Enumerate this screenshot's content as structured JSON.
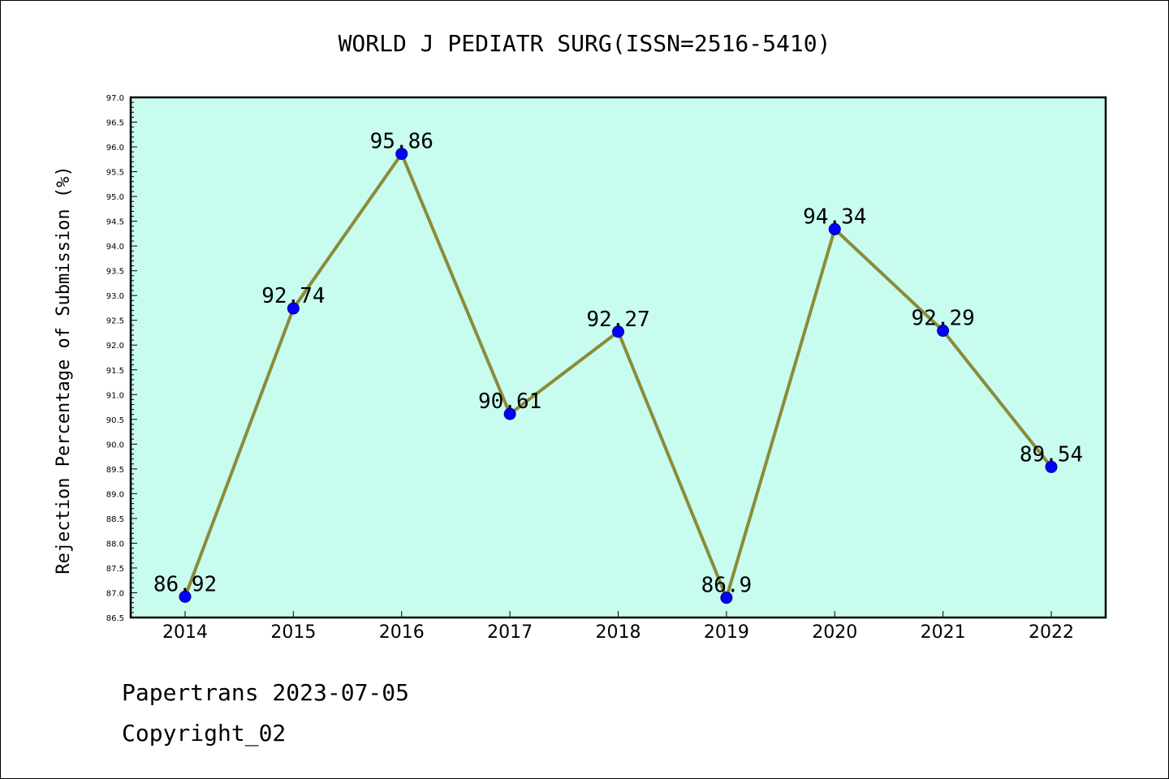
{
  "chart_data": {
    "type": "line",
    "title": "WORLD J PEDIATR SURG(ISSN=2516-5410)",
    "xlabel": "",
    "ylabel": "Rejection Percentage of Submission (%)",
    "categories": [
      "2014",
      "2015",
      "2016",
      "2017",
      "2018",
      "2019",
      "2020",
      "2021",
      "2022"
    ],
    "series": [
      {
        "values": [
          86.92,
          92.74,
          95.86,
          90.61,
          92.27,
          86.9,
          94.34,
          92.29,
          89.54
        ],
        "data_labels": [
          "86.92",
          "92.74",
          "95.86",
          "90.61",
          "92.27",
          "86.9",
          "94.34",
          "92.29",
          "89.54"
        ]
      }
    ],
    "ylim": [
      86.5,
      97.0
    ],
    "yticks": [
      "86.5",
      "87.0",
      "87.5",
      "88.0",
      "88.5",
      "89.0",
      "89.5",
      "90.0",
      "90.5",
      "91.0",
      "91.5",
      "92.0",
      "92.5",
      "93.0",
      "93.5",
      "94.0",
      "94.5",
      "95.0",
      "95.5",
      "96.0",
      "96.5",
      "97.0"
    ],
    "grid": false,
    "colors": {
      "plot_background": "#c8fcee",
      "line": "#8b8b3a",
      "marker": "#0000ff"
    }
  },
  "footer": {
    "date_line": "Papertrans 2023-07-05",
    "copyright_line": "Copyright_02"
  }
}
